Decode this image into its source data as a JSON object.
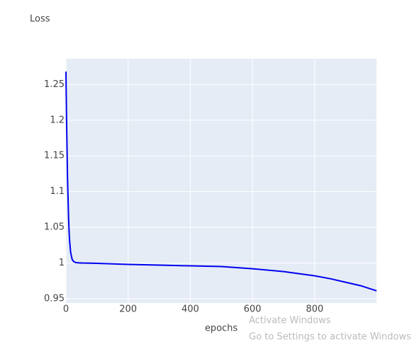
{
  "chart_data": {
    "type": "line",
    "title": "Loss",
    "x_label": "epochs",
    "x": [
      0,
      2,
      5,
      8,
      10,
      12,
      15,
      20,
      25,
      30,
      40,
      50,
      100,
      200,
      300,
      400,
      500,
      600,
      700,
      800,
      850,
      900,
      950,
      999
    ],
    "series": [
      {
        "name": "loss",
        "color": "#0000ee",
        "values": [
          1.268,
          1.2,
          1.12,
          1.07,
          1.045,
          1.03,
          1.015,
          1.005,
          1.002,
          1.0008,
          1.0003,
          1.0,
          0.9995,
          0.998,
          0.997,
          0.996,
          0.995,
          0.992,
          0.988,
          0.982,
          0.978,
          0.973,
          0.968,
          0.961
        ]
      }
    ],
    "xlim": [
      0,
      999
    ],
    "ylim": [
      0.944,
      1.286
    ],
    "xticks": [
      0,
      200,
      400,
      600,
      800
    ],
    "yticks": [
      0.95,
      1,
      1.05,
      1.1,
      1.15,
      1.2,
      1.25
    ],
    "grid": true,
    "plot_background": "#e5ecf6"
  },
  "watermark": {
    "line1": "Activate Windows",
    "line2": "Go to Settings to activate Windows."
  }
}
